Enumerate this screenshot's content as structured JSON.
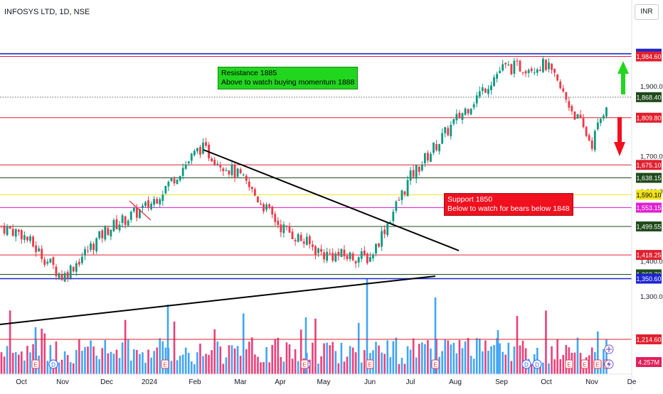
{
  "header": {
    "symbol_title": "INFOSYS LTD, 1D, NSE",
    "currency": "INR"
  },
  "annotations": {
    "resistance": {
      "line1": "Resistance  1885",
      "line2": "Above to watch buying momentum 1888"
    },
    "support": {
      "line1": "Support 1850",
      "line2": "Below to watch for bears below 1848"
    }
  },
  "chart_data": {
    "type": "candlestick",
    "title": "INFOSYS LTD, 1D, NSE",
    "currency": "INR",
    "y_range": [
      1248,
      2016
    ],
    "x_axis_labels": [
      "Oct",
      "Nov",
      "Dec",
      "2024",
      "Feb",
      "Mar",
      "Apr",
      "May",
      "Jun",
      "Jul",
      "Aug",
      "Sep",
      "Oct",
      "Nov",
      "De"
    ],
    "y_ticks": [
      1300,
      1400,
      1600,
      1700,
      1900
    ],
    "y_tick_labels": [
      "1,300.00",
      "1,400.00",
      "1,600.00",
      "1,700.00",
      "1,900.00"
    ],
    "horizontal_levels": [
      {
        "value": 1992.4,
        "label": "1,992.40",
        "color": "#1b25d1",
        "style": "solid"
      },
      {
        "value": 1984.6,
        "label": "1,984.60",
        "color": "#e0202e",
        "style": "solid"
      },
      {
        "value": 1868.4,
        "label": "1,868.40",
        "color": "#1f4a1a",
        "style": "dotted"
      },
      {
        "value": 1809.8,
        "label": "1,809.80",
        "color": "#e0202e",
        "style": "solid"
      },
      {
        "value": 1675.1,
        "label": "1,675.10",
        "color": "#e0202e",
        "style": "solid"
      },
      {
        "value": 1638.15,
        "label": "1,638.15",
        "color": "#1f4a1a",
        "style": "solid"
      },
      {
        "value": 1590.1,
        "label": "1,590.10",
        "color": "#f0e21b",
        "style": "solid"
      },
      {
        "value": 1553.15,
        "label": "1,553.15",
        "color": "#e020d0",
        "style": "solid"
      },
      {
        "value": 1499.55,
        "label": "1,499.55",
        "color": "#1f4a1a",
        "style": "solid"
      },
      {
        "value": 1418.25,
        "label": "1,418.25",
        "color": "#e0202e",
        "style": "solid"
      },
      {
        "value": 1362.7,
        "label": "1,362.70",
        "color": "#1f4a1a",
        "style": "solid"
      },
      {
        "value": 1350.6,
        "label": "1,350.60",
        "color": "#1b25d1",
        "style": "solid"
      },
      {
        "value": 1214.6,
        "label": "1,214.60",
        "color": "#e0202e",
        "style": "solid"
      }
    ],
    "volume_label": "4.257M",
    "candle_path_keypoints": [
      {
        "x_label": "Oct",
        "close": 1480
      },
      {
        "x_label": "Nov",
        "close": 1355
      },
      {
        "x_label": "Dec",
        "close": 1490
      },
      {
        "x_label": "2024",
        "close": 1560
      },
      {
        "x_label": "Feb",
        "close": 1725
      },
      {
        "x_label": "Mar",
        "close": 1640
      },
      {
        "x_label": "Apr",
        "close": 1500
      },
      {
        "x_label": "May",
        "close": 1420
      },
      {
        "x_label": "Jun",
        "close": 1410
      },
      {
        "x_label": "Jul",
        "close": 1640
      },
      {
        "x_label": "Aug",
        "close": 1800
      },
      {
        "x_label": "Sep",
        "close": 1950
      },
      {
        "x_label": "Oct",
        "close": 1960
      },
      {
        "x_label": "Nov",
        "close": 1735
      },
      {
        "x_label": "Nov",
        "close": 1868
      }
    ],
    "trendlines": [
      {
        "name": "descending",
        "from": {
          "date_label": "Feb",
          "value": 1732
        },
        "to": {
          "date_label": "Jul",
          "value": 1442
        },
        "color": "#000000"
      },
      {
        "name": "ascending",
        "from": {
          "date_label": "Oct",
          "value": 1240
        },
        "to": {
          "date_label": "Jul",
          "value": 1385
        },
        "color": "#000000"
      }
    ],
    "arrows": [
      {
        "direction": "up",
        "color": "#22d61f"
      },
      {
        "direction": "down",
        "color": "#f0101e"
      }
    ],
    "event_markers": [
      "E",
      "D",
      "D",
      "E",
      "E",
      "E",
      "E",
      "D",
      "D",
      "E",
      "E",
      "E",
      "E",
      "E",
      "E",
      "E",
      "D"
    ]
  }
}
